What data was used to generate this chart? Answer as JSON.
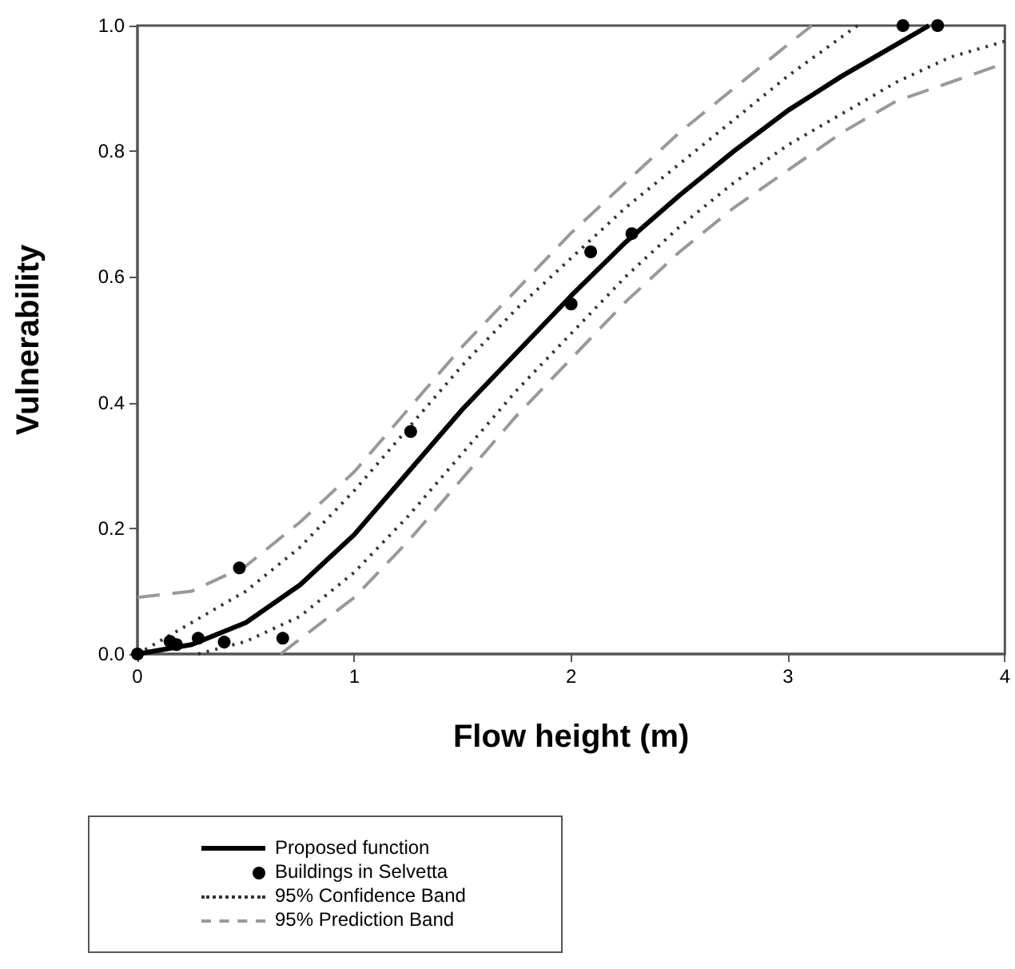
{
  "chart_data": {
    "type": "line",
    "xlabel": "Flow height (m)",
    "ylabel": "Vulnerability",
    "xlim": [
      0,
      4
    ],
    "xticks": [
      0,
      1,
      2,
      3,
      4
    ],
    "ylim": [
      0,
      1
    ],
    "yticks": [
      {
        "value": 0,
        "label": "0.0"
      },
      {
        "value": 0.2,
        "label": "0.2"
      },
      {
        "value": 0.4,
        "label": "0.4"
      },
      {
        "value": 0.6,
        "label": "0.6"
      },
      {
        "value": 0.8,
        "label": "0.8"
      },
      {
        "value": 1,
        "label": "1.0"
      }
    ],
    "grid": false,
    "legend": "bottom left",
    "series": [
      {
        "name": "Proposed function",
        "color": "#000000",
        "line_style": "solid",
        "marker": "none",
        "x": [
          0,
          0.25,
          0.5,
          0.75,
          1.0,
          1.25,
          1.5,
          1.75,
          2.0,
          2.25,
          2.5,
          2.75,
          3.0,
          3.25,
          3.5,
          3.65
        ],
        "values": [
          0,
          0.015,
          0.05,
          0.11,
          0.19,
          0.29,
          0.39,
          0.48,
          0.57,
          0.655,
          0.73,
          0.8,
          0.865,
          0.92,
          0.97,
          1.0
        ]
      },
      {
        "name": "Buildings in Selvetta",
        "type": "scatter",
        "color": "#000000",
        "marker": "circle",
        "x": [
          0,
          0.15,
          0.18,
          0.28,
          0.4,
          0.47,
          0.67,
          1.26,
          2.0,
          2.09,
          2.28,
          3.53,
          3.69
        ],
        "values": [
          0,
          0.02,
          0.015,
          0.025,
          0.019,
          0.137,
          0.025,
          0.354,
          0.557,
          0.64,
          0.669,
          1.0,
          1.0
        ]
      },
      {
        "name": "95% Confidence Band",
        "color": "#333333",
        "line_style": "dotted",
        "marker": "none",
        "x": [
          0,
          0.25,
          0.5,
          0.75,
          1.0,
          1.25,
          1.5,
          1.75,
          2.0,
          2.25,
          2.5,
          2.75,
          3.0,
          3.32
        ],
        "values": [
          0,
          0.05,
          0.1,
          0.17,
          0.26,
          0.36,
          0.46,
          0.55,
          0.63,
          0.71,
          0.78,
          0.85,
          0.92,
          1.0
        ]
      },
      {
        "color": "#333333",
        "line_style": "dotted",
        "marker": "none",
        "x": [
          0.28,
          0.5,
          0.75,
          1.0,
          1.25,
          1.5,
          1.75,
          2.0,
          2.25,
          2.5,
          2.75,
          3.0,
          3.25,
          3.5,
          3.75,
          4.0
        ],
        "values": [
          0,
          0.02,
          0.06,
          0.13,
          0.22,
          0.32,
          0.42,
          0.51,
          0.6,
          0.68,
          0.75,
          0.81,
          0.86,
          0.91,
          0.95,
          0.975
        ]
      },
      {
        "name": "95% Prediction Band",
        "color": "#999999",
        "line_style": "dashed",
        "marker": "none",
        "x": [
          0,
          0.25,
          0.5,
          0.75,
          1.0,
          1.25,
          1.5,
          1.75,
          2.0,
          2.25,
          2.5,
          2.75,
          3.0,
          3.11
        ],
        "values": [
          0.09,
          0.1,
          0.14,
          0.21,
          0.29,
          0.39,
          0.49,
          0.58,
          0.67,
          0.75,
          0.83,
          0.9,
          0.97,
          1.0
        ]
      },
      {
        "color": "#999999",
        "line_style": "dashed",
        "marker": "none",
        "x": [
          0.66,
          1.0,
          1.25,
          1.5,
          1.75,
          2.0,
          2.25,
          2.5,
          2.75,
          3.0,
          3.25,
          3.5,
          3.75,
          4.0
        ],
        "values": [
          0,
          0.09,
          0.18,
          0.28,
          0.38,
          0.47,
          0.56,
          0.64,
          0.71,
          0.77,
          0.83,
          0.88,
          0.91,
          0.94
        ]
      }
    ]
  }
}
